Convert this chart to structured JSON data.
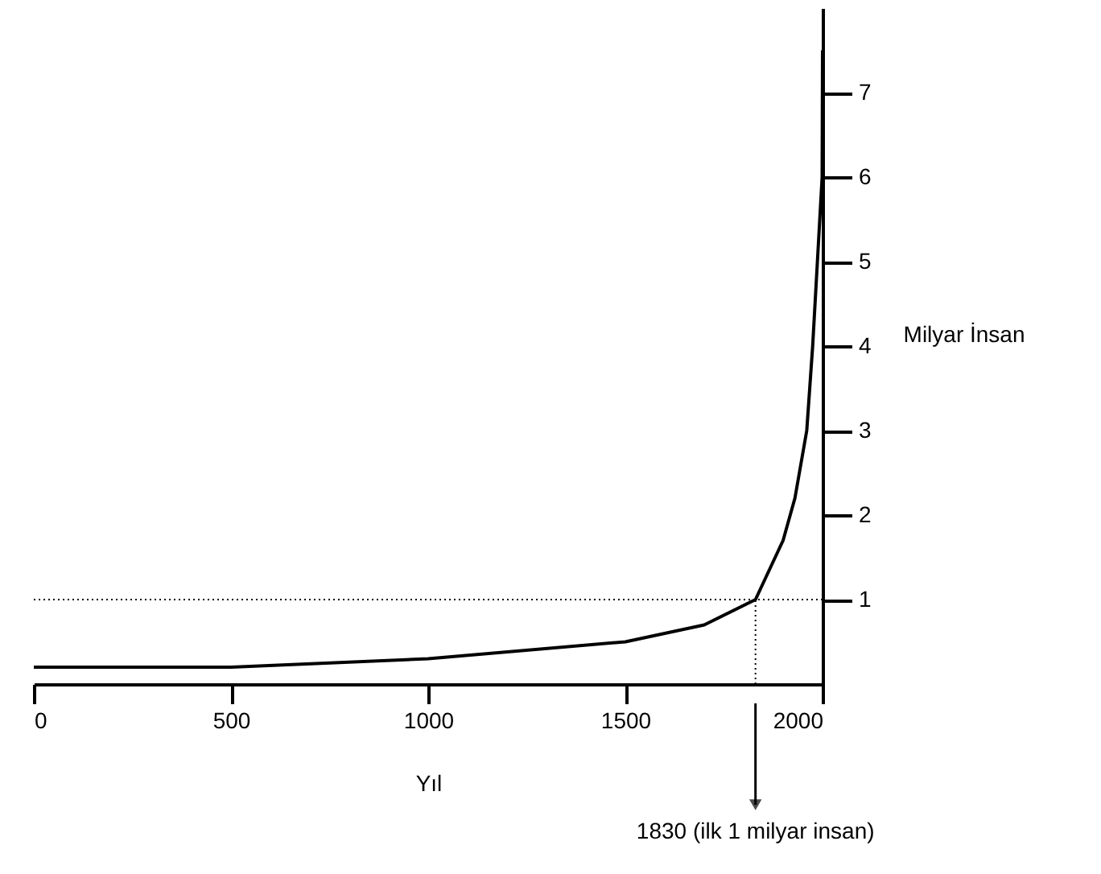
{
  "chart_data": {
    "type": "line",
    "x": [
      0,
      500,
      1000,
      1500,
      1700,
      1830,
      1900,
      1930,
      1960,
      1975,
      1987,
      1999,
      2000
    ],
    "values": [
      0.2,
      0.2,
      0.3,
      0.5,
      0.7,
      1.0,
      1.7,
      2.2,
      3.0,
      4.0,
      5.0,
      6.0,
      7.5
    ],
    "color": "#000000",
    "xlim": [
      0,
      2000
    ],
    "xticks": [
      0,
      500,
      1000,
      1500,
      2000
    ],
    "ylim": [
      0,
      8
    ],
    "yticks": [
      1,
      2,
      3,
      4,
      5,
      6,
      7
    ],
    "xlabel": "Yıl",
    "ylabel": "Milyar İnsan",
    "ref_lines": [
      {
        "axis": "y",
        "value": 1,
        "line_style": "dotted"
      },
      {
        "axis": "x",
        "value": 1830,
        "line_style": "dotted",
        "label": "1830 (ilk 1 milyar insan)"
      }
    ],
    "grid": false,
    "marker": "none",
    "line_style": "solid"
  }
}
